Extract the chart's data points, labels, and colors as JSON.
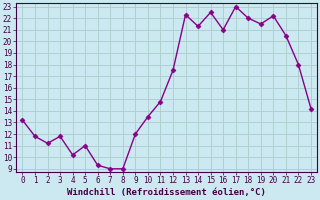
{
  "x": [
    0,
    1,
    2,
    3,
    4,
    5,
    6,
    7,
    8,
    9,
    10,
    11,
    12,
    13,
    14,
    15,
    16,
    17,
    18,
    19,
    20,
    21,
    22,
    23
  ],
  "y": [
    13.2,
    11.8,
    11.2,
    11.8,
    10.2,
    11.0,
    9.3,
    9.0,
    9.0,
    12.0,
    13.5,
    14.8,
    17.5,
    22.3,
    21.3,
    22.5,
    21.0,
    23.0,
    22.0,
    21.5,
    22.2,
    20.5,
    18.0,
    14.2
  ],
  "line_color": "#880088",
  "marker": "D",
  "markersize": 2.5,
  "linewidth": 1.0,
  "bg_color": "#cce8f0",
  "grid_color": "#aacccc",
  "xlabel": "Windchill (Refroidissement éolien,°C)",
  "xlabel_fontsize": 6.5,
  "tick_fontsize": 5.5,
  "ylim": [
    9,
    23
  ],
  "xlim": [
    0,
    23
  ],
  "yticks": [
    9,
    10,
    11,
    12,
    13,
    14,
    15,
    16,
    17,
    18,
    19,
    20,
    21,
    22,
    23
  ],
  "xticks": [
    0,
    1,
    2,
    3,
    4,
    5,
    6,
    7,
    8,
    9,
    10,
    11,
    12,
    13,
    14,
    15,
    16,
    17,
    18,
    19,
    20,
    21,
    22,
    23
  ]
}
